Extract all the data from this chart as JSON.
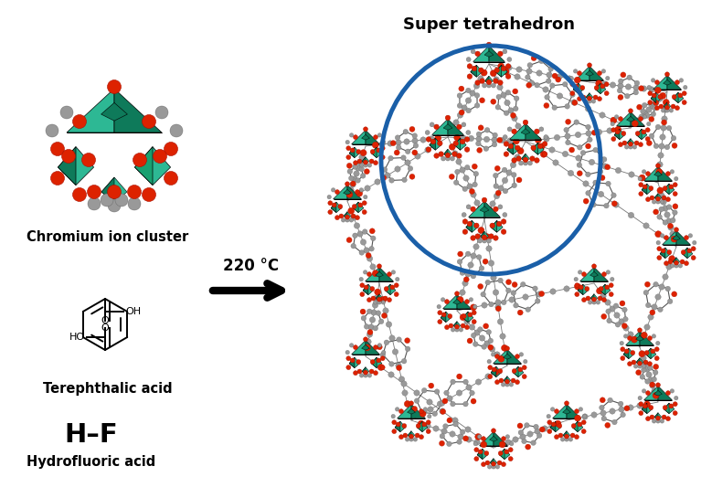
{
  "background_color": "#ffffff",
  "figsize": [
    7.67,
    5.45
  ],
  "dpi": 100,
  "chromium_cluster_label": "Chromium ion cluster",
  "terephthalic_label": "Terephthalic acid",
  "hf_formula": "H–F",
  "hf_label": "Hydrofluoric acid",
  "arrow_label": "220 °C",
  "super_tetrahedron_label": "Super tetrahedron",
  "teal_light": "#2db894",
  "teal_dark": "#0e7a5a",
  "teal_mid": "#18a070",
  "red": "#dd2200",
  "red_dark": "#aa1100",
  "gray": "#999999",
  "gray_dark": "#666666",
  "circle_color": "#1a5fa8",
  "circle_lw": 3.5,
  "label_fontsize": 10.5,
  "temp_fontsize": 12,
  "st_fontsize": 13
}
